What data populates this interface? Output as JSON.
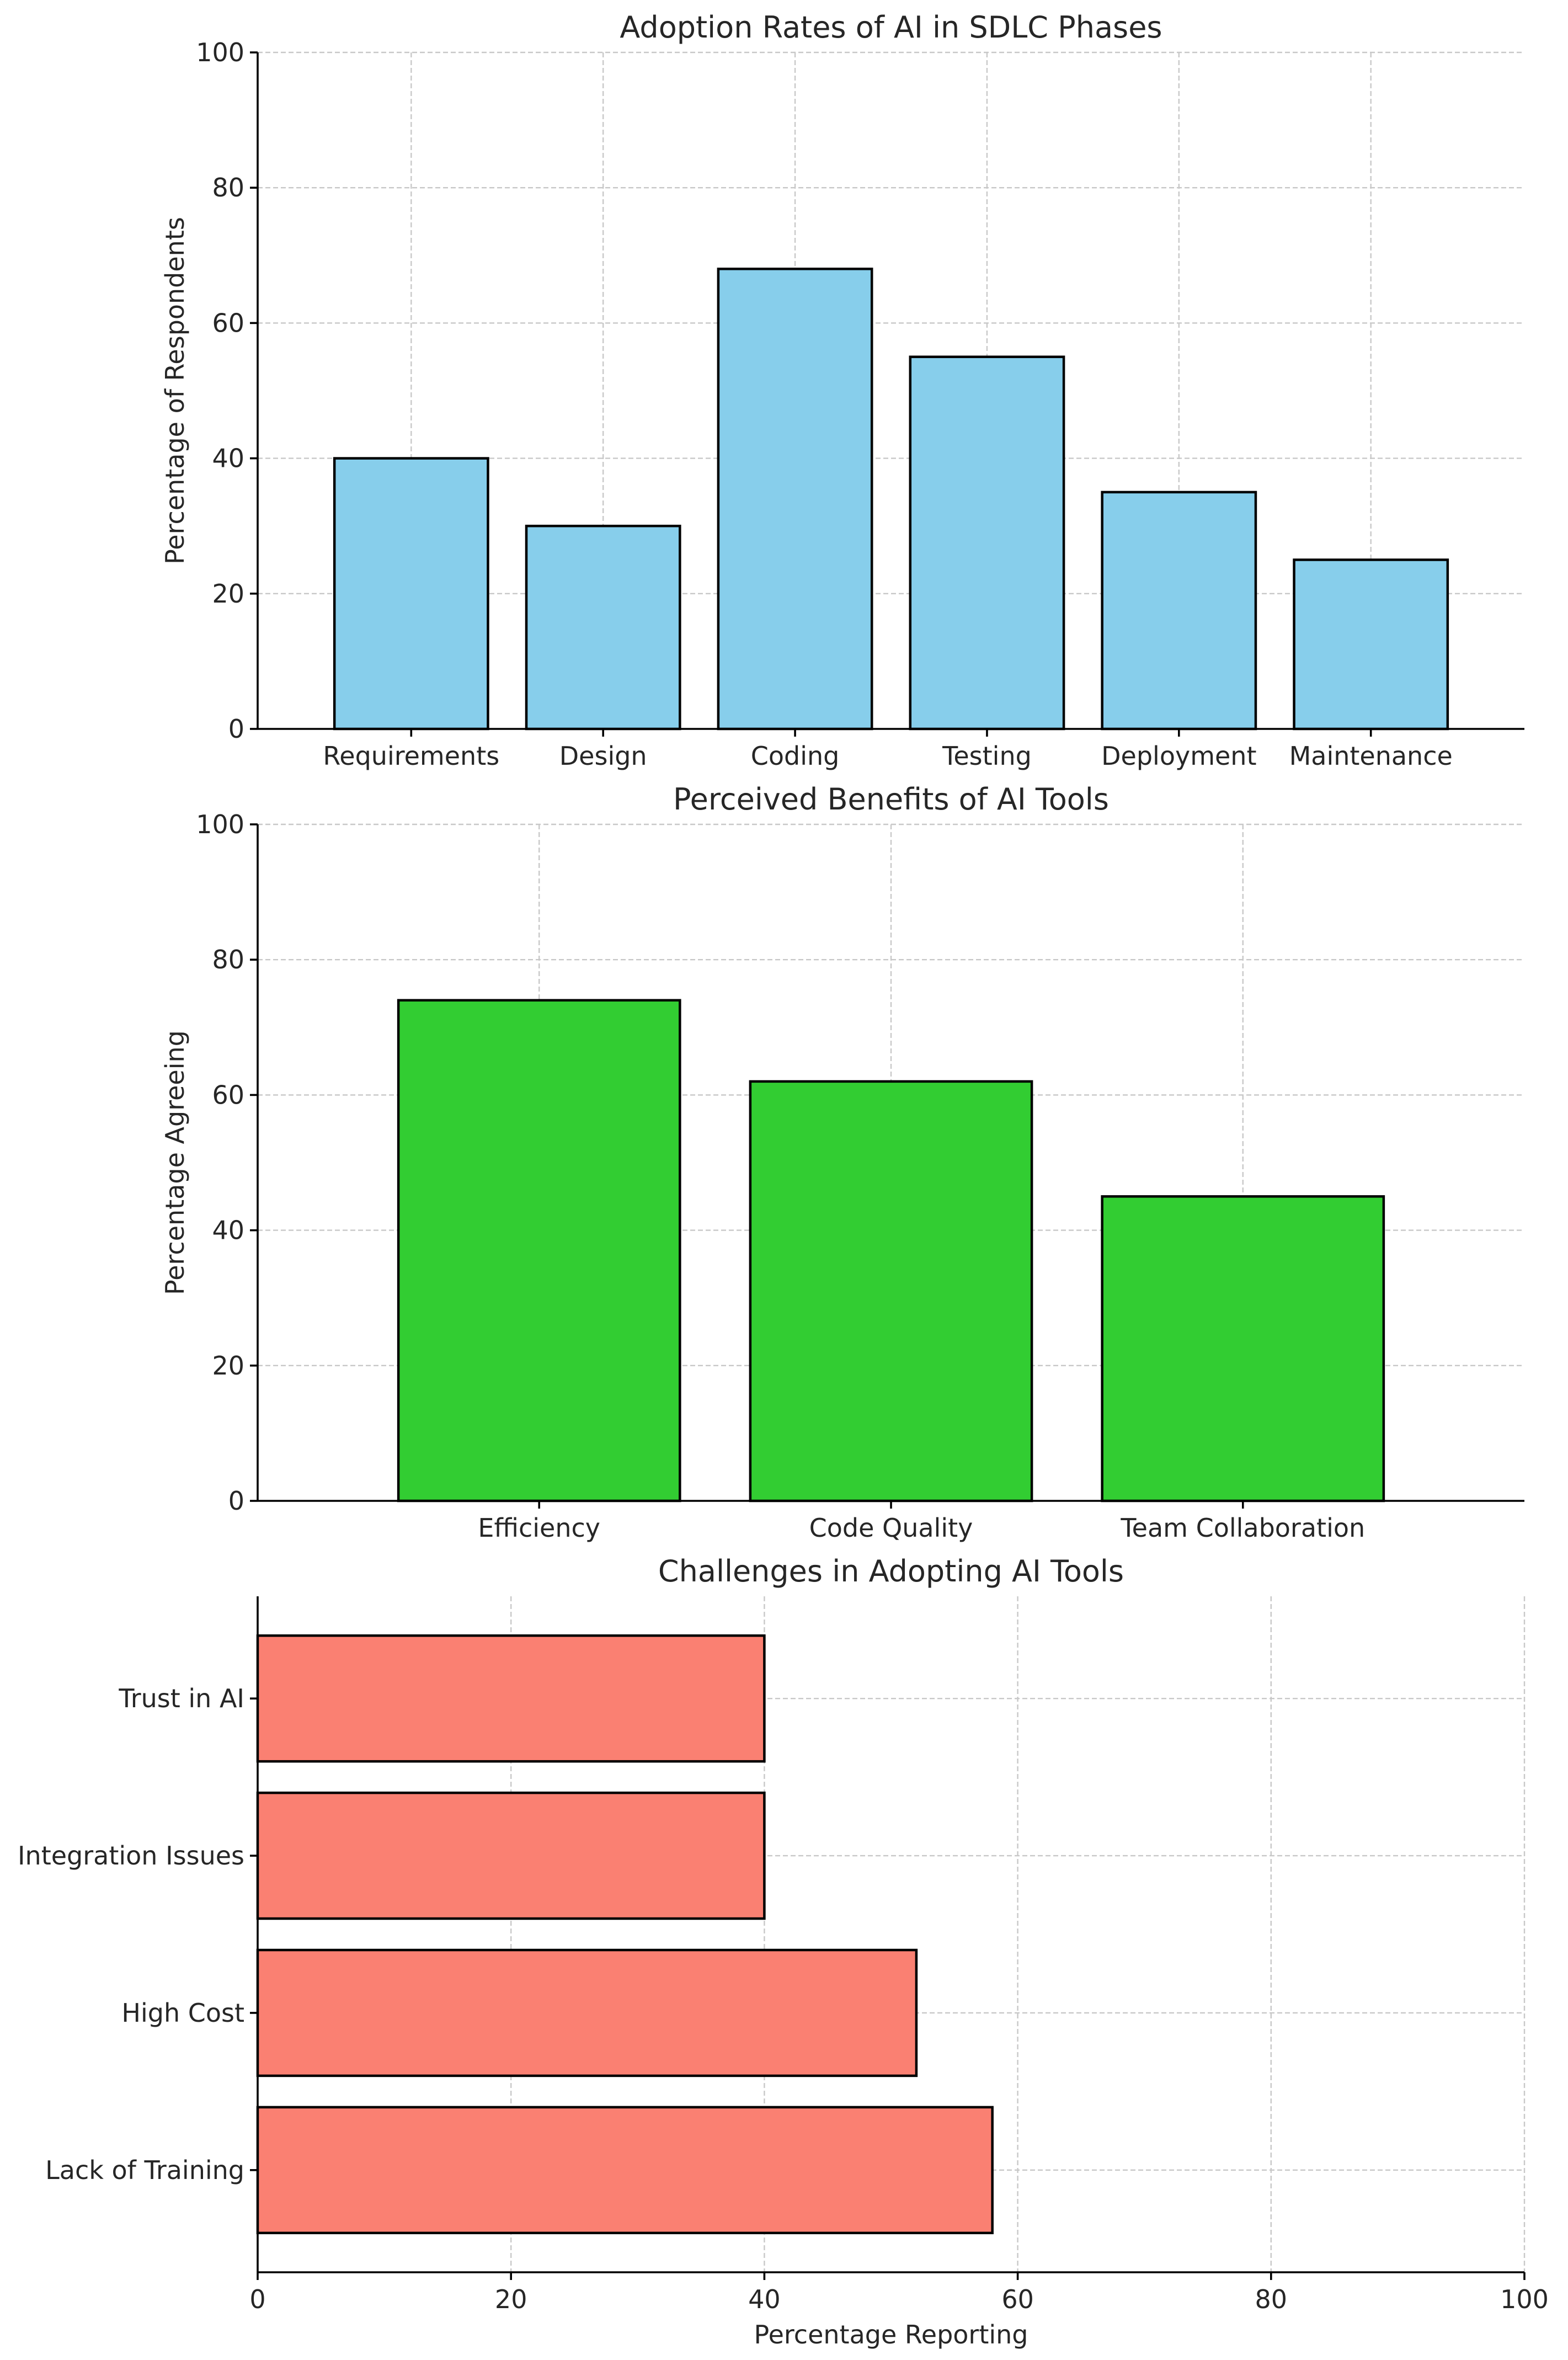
{
  "chart_data": [
    {
      "type": "bar",
      "orientation": "vertical",
      "title": "Adoption Rates of AI in SDLC Phases",
      "xlabel": "",
      "ylabel": "Percentage of Respondents",
      "categories": [
        "Requirements",
        "Design",
        "Coding",
        "Testing",
        "Deployment",
        "Maintenance"
      ],
      "values": [
        40,
        30,
        68,
        55,
        35,
        25
      ],
      "ylim": [
        0,
        100
      ],
      "ticks": [
        0,
        20,
        40,
        60,
        80,
        100
      ],
      "grid": true,
      "color": "#87ceeb"
    },
    {
      "type": "bar",
      "orientation": "vertical",
      "title": "Perceived Benefits of AI Tools",
      "xlabel": "",
      "ylabel": "Percentage Agreeing",
      "categories": [
        "Efficiency",
        "Code Quality",
        "Team Collaboration"
      ],
      "values": [
        74,
        62,
        45
      ],
      "ylim": [
        0,
        100
      ],
      "ticks": [
        0,
        20,
        40,
        60,
        80,
        100
      ],
      "grid": true,
      "color": "#32cd32"
    },
    {
      "type": "bar",
      "orientation": "horizontal",
      "title": "Challenges in Adopting AI Tools",
      "xlabel": "Percentage Reporting",
      "ylabel": "",
      "categories": [
        "Lack of Training",
        "High Cost",
        "Integration Issues",
        "Trust in AI"
      ],
      "values": [
        58,
        52,
        40,
        40
      ],
      "xlim": [
        0,
        100
      ],
      "ticks": [
        0,
        20,
        40,
        60,
        80,
        100
      ],
      "grid": true,
      "color": "#fa8072"
    }
  ]
}
